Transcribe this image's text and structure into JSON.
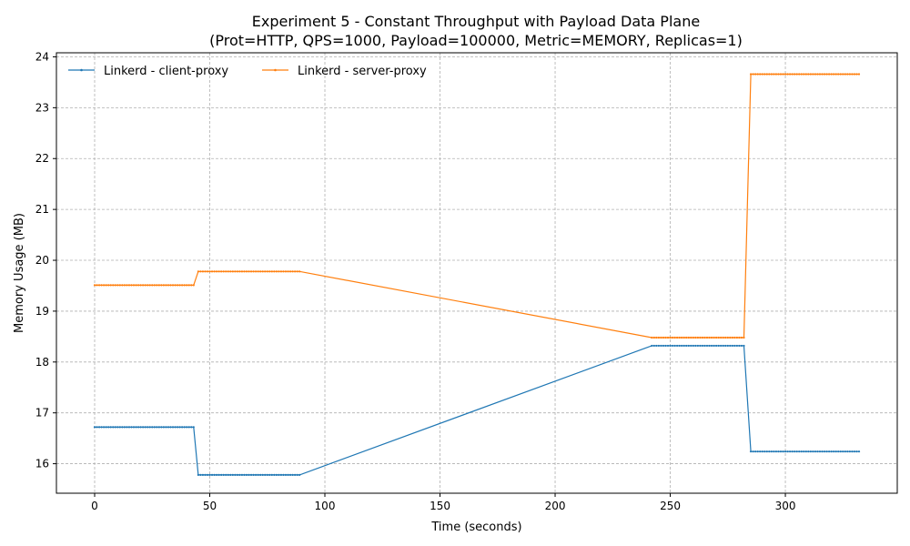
{
  "chart_data": {
    "type": "line",
    "title": "Experiment 5 - Constant Throughput with Payload Data Plane",
    "subtitle": "(Prot=HTTP, QPS=1000, Payload=100000, Metric=MEMORY, Replicas=1)",
    "xlabel": "Time (seconds)",
    "ylabel": "Memory Usage (MB)",
    "xlim": [
      -16.6,
      348.6
    ],
    "ylim": [
      15.42,
      24.08
    ],
    "xticks": [
      0,
      50,
      100,
      150,
      200,
      250,
      300
    ],
    "yticks": [
      16,
      17,
      18,
      19,
      20,
      21,
      22,
      23,
      24
    ],
    "grid": true,
    "legend_position": "top-left",
    "series": [
      {
        "name": "Linkerd - client-proxy",
        "color": "#1f77b4",
        "segments": [
          {
            "x_start": 0,
            "x_end": 43,
            "value": 16.72
          },
          {
            "x_start": 45,
            "x_end": 89,
            "value": 15.78
          },
          {
            "x_start": 242,
            "x_end": 282,
            "value": 18.32
          },
          {
            "x_start": 285,
            "x_end": 332,
            "value": 16.24
          }
        ]
      },
      {
        "name": "Linkerd - server-proxy",
        "color": "#ff7f0e",
        "segments": [
          {
            "x_start": 0,
            "x_end": 43,
            "value": 19.51
          },
          {
            "x_start": 45,
            "x_end": 89,
            "value": 19.78
          },
          {
            "x_start": 242,
            "x_end": 282,
            "value": 18.48
          },
          {
            "x_start": 285,
            "x_end": 332,
            "value": 23.66
          }
        ]
      }
    ]
  }
}
